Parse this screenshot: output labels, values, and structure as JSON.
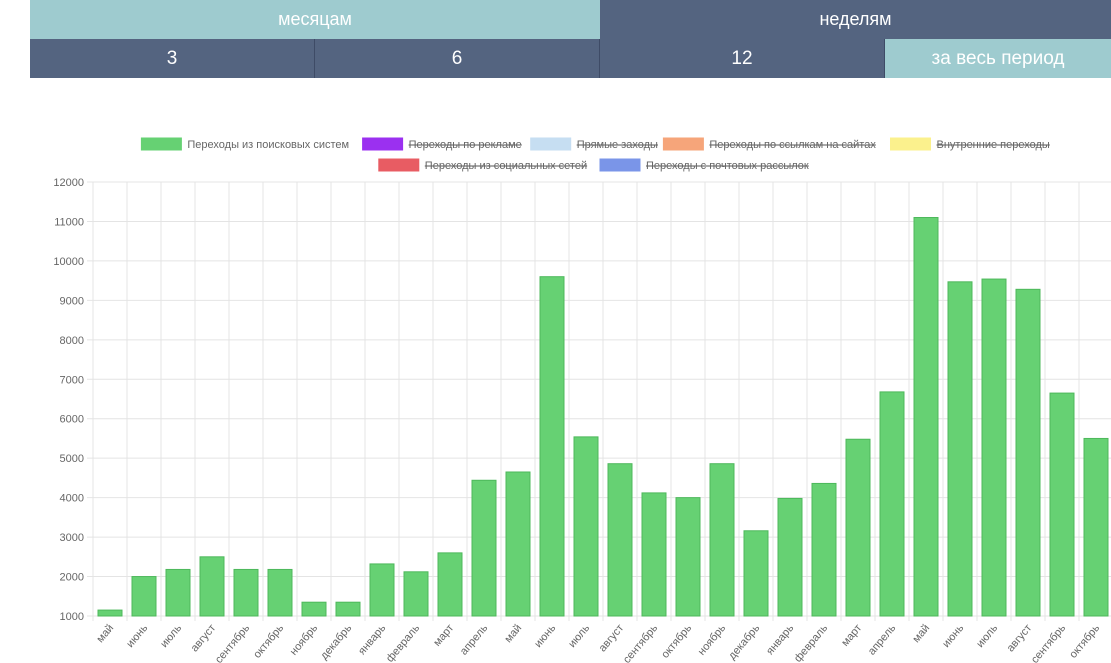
{
  "period_tabs": [
    {
      "label": "месяцам",
      "active": true
    },
    {
      "label": "неделям",
      "active": false
    }
  ],
  "range_tabs": [
    {
      "label": "3",
      "active": false
    },
    {
      "label": "6",
      "active": false
    },
    {
      "label": "12",
      "active": false
    },
    {
      "label": "за весь период",
      "active": true
    }
  ],
  "colors": {
    "tab_active": "#9ecbcf",
    "tab_inactive": "#546480",
    "bar_fill": "#66d173",
    "bar_stroke": "#4db85b"
  },
  "chart_data": {
    "type": "bar",
    "legend": [
      {
        "name": "Переходы из поисковых систем",
        "color": "#66d173",
        "hidden": false
      },
      {
        "name": "Переходы по рекламе",
        "color": "#9b30f0",
        "hidden": true
      },
      {
        "name": "Прямые заходы",
        "color": "#c6def2",
        "hidden": true
      },
      {
        "name": "Переходы по ссылкам на сайтах",
        "color": "#f6a57a",
        "hidden": true
      },
      {
        "name": "Внутренние переходы",
        "color": "#fbf18d",
        "hidden": true
      },
      {
        "name": "Переходы из социальных сетей",
        "color": "#e85c63",
        "hidden": true
      },
      {
        "name": "Переходы с почтовых рассылок",
        "color": "#7a95e8",
        "hidden": true
      }
    ],
    "categories": [
      "май",
      "июнь",
      "июль",
      "август",
      "сентябрь",
      "октябрь",
      "ноябрь",
      "декабрь",
      "январь",
      "февраль",
      "март",
      "апрель",
      "май",
      "июнь",
      "июль",
      "август",
      "сентябрь",
      "октябрь",
      "ноябрь",
      "декабрь",
      "январь",
      "февраль",
      "март",
      "апрель",
      "май",
      "июнь",
      "июль",
      "август",
      "сентябрь",
      "октябрь"
    ],
    "series": [
      {
        "name": "Переходы из поисковых систем",
        "values": [
          1150,
          2000,
          2180,
          2500,
          2180,
          2180,
          1350,
          1350,
          2320,
          2120,
          2600,
          4440,
          4650,
          9600,
          5540,
          4860,
          4120,
          4000,
          4860,
          3160,
          3980,
          4360,
          5480,
          6680,
          11100,
          9470,
          9540,
          9280,
          6650,
          5500
        ]
      }
    ],
    "yticks": [
      1000,
      2000,
      3000,
      4000,
      5000,
      6000,
      7000,
      8000,
      9000,
      10000,
      11000,
      12000
    ],
    "ylim": [
      1000,
      12000
    ],
    "grid": true,
    "legend_position": "top"
  }
}
